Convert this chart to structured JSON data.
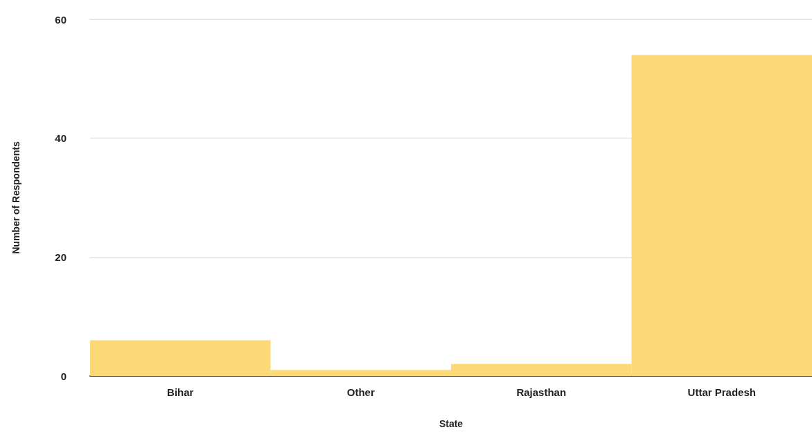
{
  "chart_data": {
    "type": "bar",
    "xlabel": "State",
    "ylabel": "Number of Respondents",
    "categories": [
      "Bihar",
      "Other",
      "Rajasthan",
      "Uttar Pradesh"
    ],
    "values": [
      6,
      1,
      2,
      54
    ],
    "color": "#fdd876",
    "ylim": [
      0,
      60
    ],
    "yticks": [
      0,
      20,
      40,
      60
    ],
    "grid": "y"
  }
}
